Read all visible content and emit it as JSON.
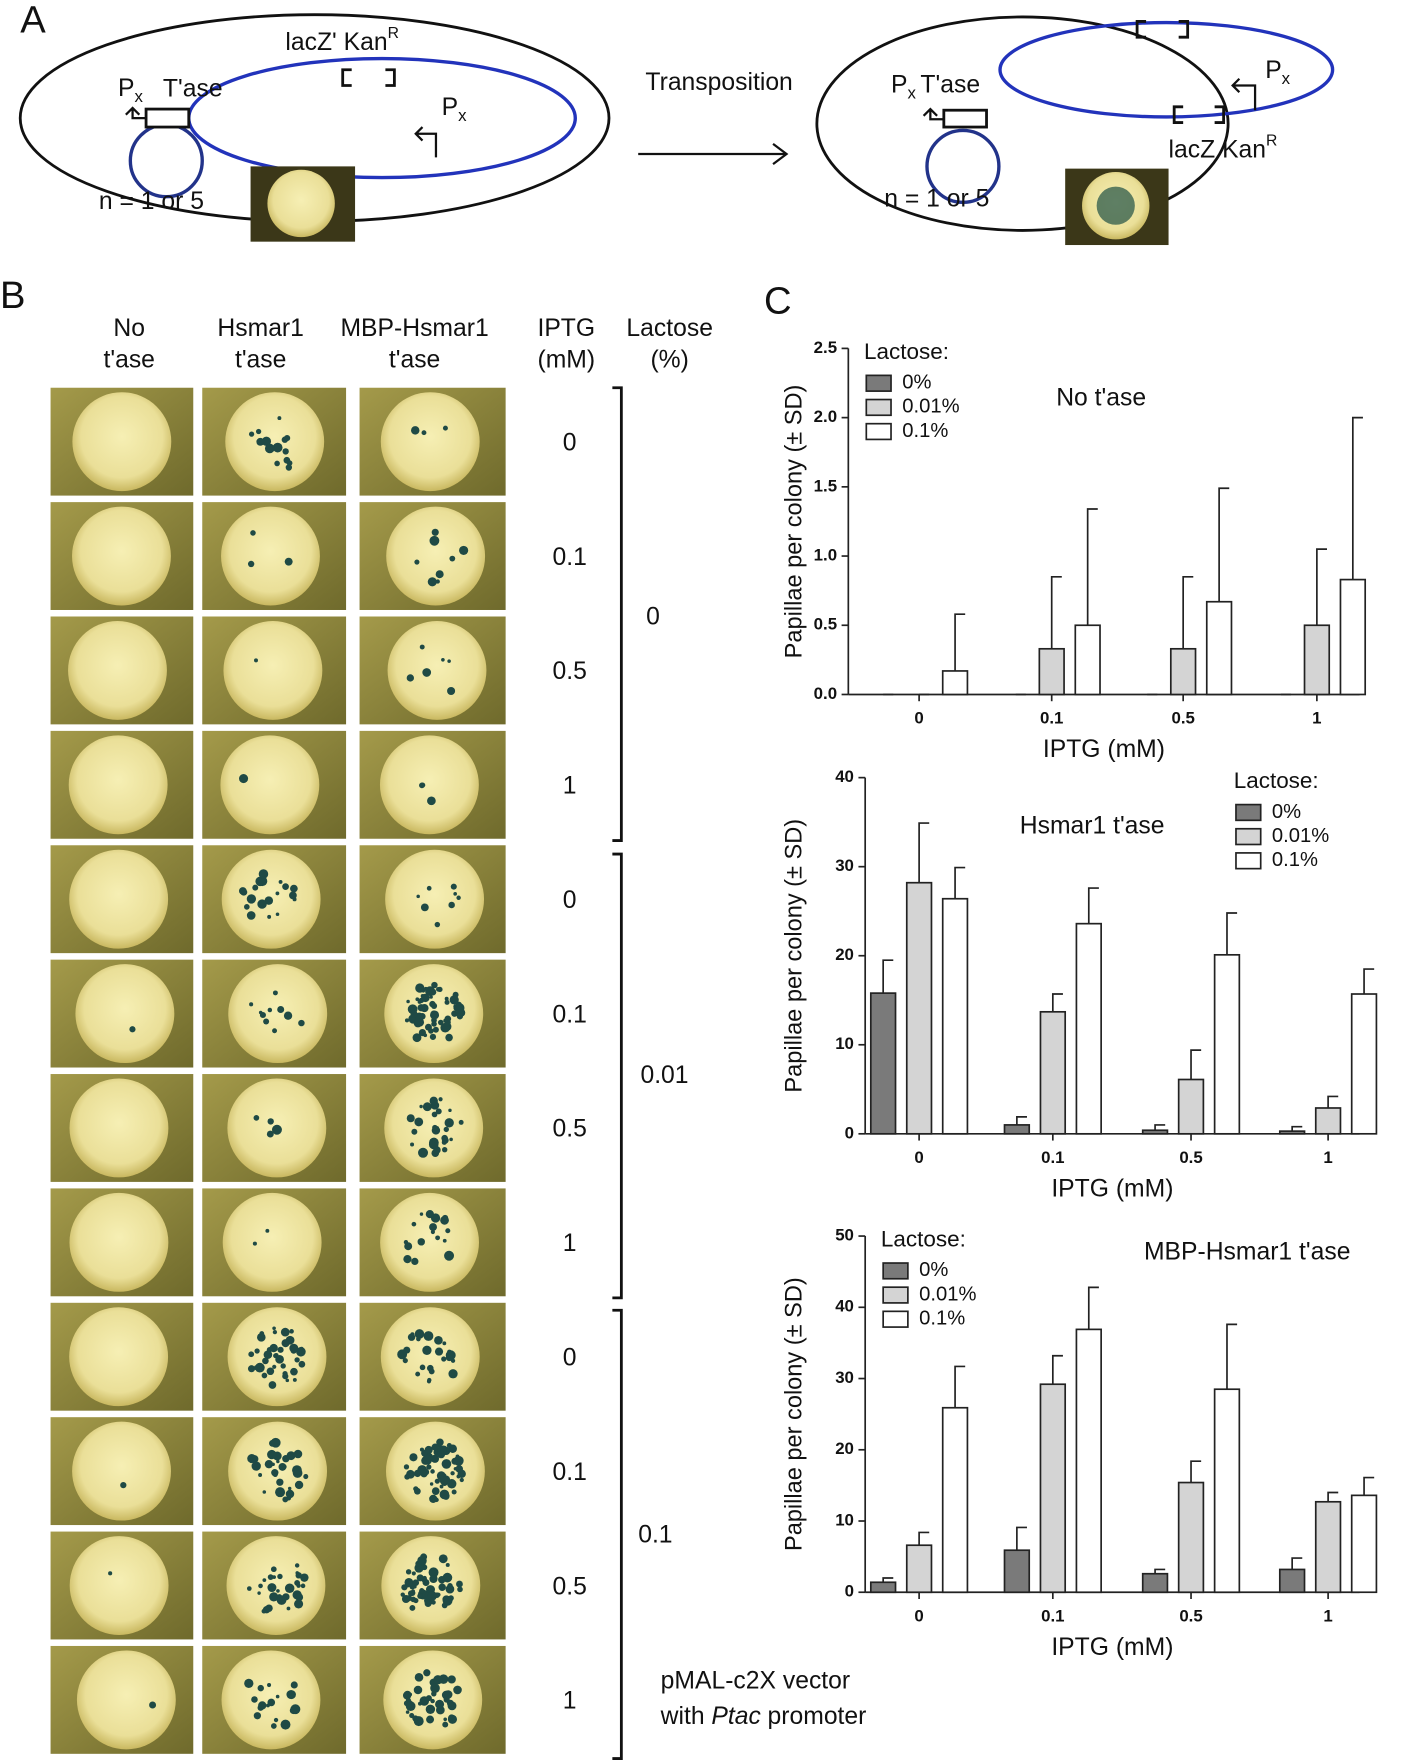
{
  "panel_a": {
    "label": "A",
    "left_cell": {
      "promoter": "P",
      "promoter_sub": "x",
      "transposase": "T'ase",
      "marker": "lacZ' Kan",
      "marker_sup": "R",
      "promoter2": "P",
      "promoter2_sub": "x",
      "copy_number": "n = 1 or 5"
    },
    "arrow_label": "Transposition",
    "right_cell": {
      "promoter": "P",
      "promoter_sub": "x",
      "transposase": "T'ase",
      "marker": "lacZ Kan",
      "marker_sup": "R",
      "promoter2": "P",
      "promoter2_sub": "x",
      "copy_number": "n = 1 or 5"
    }
  },
  "panel_b": {
    "label": "B",
    "column_headers": [
      [
        "No",
        "t'ase"
      ],
      [
        "Hsmar1",
        "t'ase"
      ],
      [
        "MBP-Hsmar1",
        "t'ase"
      ],
      [
        "IPTG",
        "(mM)"
      ],
      [
        "Lactose",
        "(%)"
      ]
    ],
    "iptg_labels": [
      "0",
      "0.1",
      "0.5",
      "1",
      "0",
      "0.1",
      "0.5",
      "1",
      "0",
      "0.1",
      "0.5",
      "1"
    ],
    "lactose_labels": [
      "0",
      "0.01",
      "0.1"
    ],
    "footnote": {
      "line1": "pMAL-c2X vector",
      "line2_prefix": "with",
      "line2_italic": "Ptac",
      "line2_suffix": "promoter"
    }
  },
  "panel_c_label": "C",
  "chart_data": [
    {
      "type": "bar",
      "title": "No t'ase",
      "y_label": "Papillae per colony (± SD)",
      "x_label": "IPTG (mM)",
      "legend_title": "Lactose:",
      "legend": "upper left",
      "categories": [
        "0",
        "0.1",
        "0.5",
        "1"
      ],
      "series": [
        {
          "name": "0%",
          "color": "#7a7a7a",
          "values": [
            0,
            0,
            0,
            0
          ],
          "errors": [
            0,
            0,
            0,
            0
          ]
        },
        {
          "name": "0.01%",
          "color": "#d4d4d4",
          "values": [
            0,
            0.33,
            0.33,
            0.5
          ],
          "errors": [
            0,
            0.52,
            0.52,
            0.55
          ]
        },
        {
          "name": "0.1%",
          "color": "#ffffff",
          "values": [
            0.17,
            0.5,
            0.67,
            0.83
          ],
          "errors": [
            0.41,
            0.84,
            0.82,
            1.17
          ]
        }
      ],
      "ylim": [
        0,
        2.5
      ],
      "yticks": [
        {
          "value": 0,
          "label": "0.0"
        },
        0.5,
        {
          "value": 1,
          "label": "1.0"
        },
        1.5,
        {
          "value": 2,
          "label": "2.0"
        },
        2.5
      ]
    },
    {
      "type": "bar",
      "title": "Hsmar1 t'ase",
      "y_label": "Papillae per colony (± SD)",
      "x_label": "IPTG (mM)",
      "legend_title": "Lactose:",
      "legend": "upper right",
      "categories": [
        "0",
        "0.1",
        "0.5",
        "1"
      ],
      "series": [
        {
          "name": "0%",
          "color": "#7a7a7a",
          "values": [
            15.8,
            1.0,
            0.4,
            0.3
          ],
          "errors": [
            3.7,
            0.9,
            0.6,
            0.5
          ]
        },
        {
          "name": "0.01%",
          "color": "#d4d4d4",
          "values": [
            28.2,
            13.7,
            6.1,
            2.9
          ],
          "errors": [
            6.7,
            2.0,
            3.3,
            1.3
          ]
        },
        {
          "name": "0.1%",
          "color": "#ffffff",
          "values": [
            26.4,
            23.6,
            20.1,
            15.7
          ],
          "errors": [
            3.5,
            4.0,
            4.7,
            2.8
          ]
        }
      ],
      "ylim": [
        0,
        40
      ],
      "yticks": [
        0,
        10,
        20,
        30,
        40
      ]
    },
    {
      "type": "bar",
      "title": "MBP-Hsmar1 t'ase",
      "y_label": "Papillae per colony (± SD)",
      "x_label": "IPTG (mM)",
      "legend_title": "Lactose:",
      "legend": "upper left",
      "categories": [
        "0",
        "0.1",
        "0.5",
        "1"
      ],
      "series": [
        {
          "name": "0%",
          "color": "#7a7a7a",
          "values": [
            1.4,
            5.9,
            2.6,
            3.2
          ],
          "errors": [
            0.6,
            3.2,
            0.6,
            1.6
          ]
        },
        {
          "name": "0.01%",
          "color": "#d4d4d4",
          "values": [
            6.6,
            29.2,
            15.4,
            12.7
          ],
          "errors": [
            1.8,
            4.0,
            3.0,
            1.3
          ]
        },
        {
          "name": "0.1%",
          "color": "#ffffff",
          "values": [
            25.9,
            36.9,
            28.5,
            13.6
          ],
          "errors": [
            5.8,
            5.9,
            9.1,
            2.5
          ]
        }
      ],
      "ylim": [
        0,
        50
      ],
      "yticks": [
        0,
        10,
        20,
        30,
        40,
        50
      ]
    }
  ]
}
